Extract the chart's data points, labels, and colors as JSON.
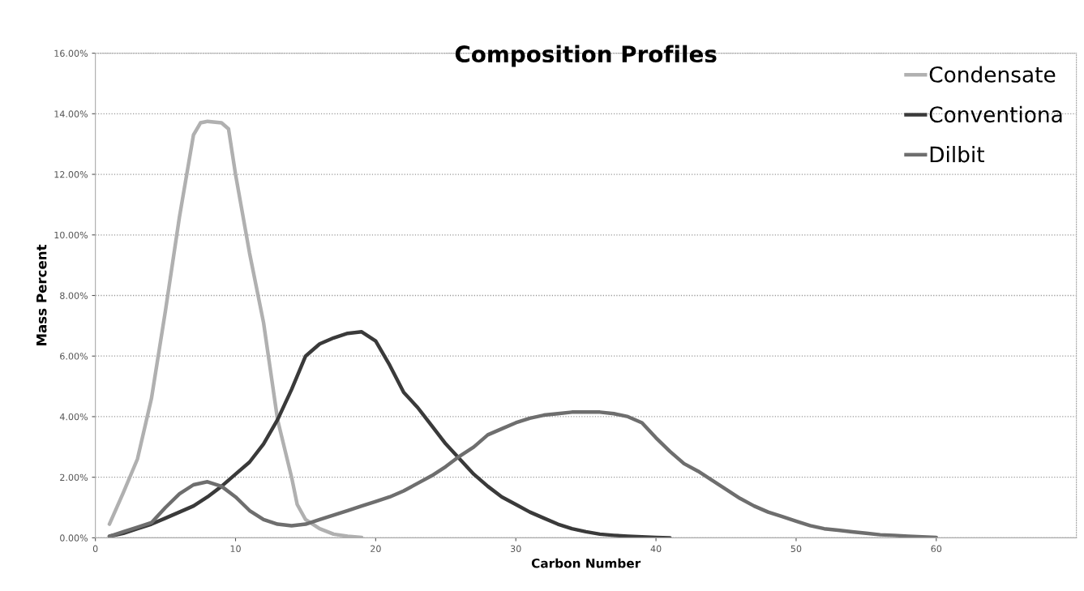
{
  "chart_data": {
    "type": "line",
    "title": "Composition Profiles",
    "xlabel": "Carbon Number",
    "ylabel": "Mass Percent",
    "xlim": [
      0,
      70
    ],
    "xticks": [
      0,
      10,
      20,
      30,
      40,
      50,
      60
    ],
    "ylim": [
      0,
      16
    ],
    "yticks": [
      {
        "value": 0,
        "label": "0.00%"
      },
      {
        "value": 2,
        "label": "2.00%"
      },
      {
        "value": 4,
        "label": "4.00%"
      },
      {
        "value": 6,
        "label": "6.00%"
      },
      {
        "value": 8,
        "label": "8.00%"
      },
      {
        "value": 10,
        "label": "10.00%"
      },
      {
        "value": 12,
        "label": "12.00%"
      },
      {
        "value": 14,
        "label": "14.00%"
      },
      {
        "value": 16,
        "label": "16.00%"
      }
    ],
    "grid": "y",
    "legend": "top right",
    "marker": "none",
    "line_style": "solid",
    "series": [
      {
        "name": "Condensate",
        "color": "#b0b0b0",
        "x": [
          1,
          2,
          3,
          4,
          5,
          6,
          7,
          7.5,
          8,
          9,
          9.5,
          10,
          11,
          12,
          13,
          14,
          14.4,
          15,
          16,
          17,
          18,
          19
        ],
        "values": [
          0.45,
          1.5,
          2.6,
          4.6,
          7.5,
          10.6,
          13.3,
          13.7,
          13.75,
          13.7,
          13.5,
          12.0,
          9.4,
          7.1,
          3.9,
          2.0,
          1.1,
          0.6,
          0.3,
          0.12,
          0.05,
          0.01
        ]
      },
      {
        "name": "Conventiona",
        "color": "#3a3a3a",
        "x": [
          1,
          2,
          3,
          4,
          5,
          6,
          7,
          8,
          9,
          10,
          11,
          12,
          13,
          14,
          15,
          16,
          17,
          18,
          19,
          20,
          21,
          22,
          23,
          24,
          25,
          26,
          27,
          28,
          29,
          30,
          31,
          32,
          33,
          34,
          35,
          36,
          37,
          38,
          39,
          40,
          41
        ],
        "values": [
          0.05,
          0.15,
          0.3,
          0.45,
          0.65,
          0.85,
          1.05,
          1.35,
          1.7,
          2.1,
          2.5,
          3.1,
          3.9,
          4.9,
          6.0,
          6.4,
          6.6,
          6.75,
          6.8,
          6.5,
          5.7,
          4.8,
          4.3,
          3.7,
          3.1,
          2.6,
          2.1,
          1.7,
          1.35,
          1.1,
          0.85,
          0.65,
          0.45,
          0.3,
          0.2,
          0.12,
          0.08,
          0.05,
          0.03,
          0.01,
          0
        ]
      },
      {
        "name": "Dilbit",
        "color": "#6e6e6e",
        "x": [
          1,
          2,
          3,
          4,
          5,
          6,
          7,
          8,
          9,
          10,
          11,
          12,
          13,
          14,
          15,
          16,
          17,
          18,
          19,
          20,
          21,
          22,
          23,
          24,
          25,
          26,
          27,
          28,
          29,
          30,
          31,
          32,
          33,
          34,
          35,
          36,
          37,
          38,
          39,
          40,
          41,
          42,
          43,
          44,
          45,
          46,
          47,
          48,
          49,
          50,
          51,
          52,
          53,
          54,
          55,
          56,
          57,
          58,
          59,
          60
        ],
        "values": [
          0.05,
          0.2,
          0.35,
          0.5,
          1.0,
          1.45,
          1.75,
          1.85,
          1.7,
          1.35,
          0.9,
          0.6,
          0.45,
          0.4,
          0.45,
          0.6,
          0.75,
          0.9,
          1.05,
          1.2,
          1.35,
          1.55,
          1.8,
          2.05,
          2.35,
          2.7,
          3.0,
          3.4,
          3.6,
          3.8,
          3.95,
          4.05,
          4.1,
          4.15,
          4.15,
          4.15,
          4.1,
          4.0,
          3.8,
          3.3,
          2.85,
          2.45,
          2.2,
          1.9,
          1.6,
          1.3,
          1.05,
          0.85,
          0.7,
          0.55,
          0.4,
          0.3,
          0.25,
          0.2,
          0.15,
          0.1,
          0.08,
          0.05,
          0.03,
          0.01
        ]
      }
    ]
  }
}
